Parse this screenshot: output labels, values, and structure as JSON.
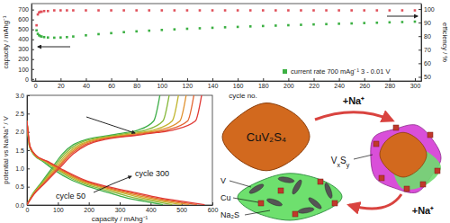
{
  "chart_data": [
    {
      "type": "scatter",
      "xlabel": "cycle no.",
      "ylabel": "capacity / mAhg⁻¹",
      "y2label": "efficiency / %",
      "x": [
        1,
        2,
        3,
        4,
        5,
        7,
        10,
        15,
        20,
        25,
        30,
        40,
        50,
        60,
        70,
        80,
        90,
        100,
        110,
        120,
        130,
        140,
        150,
        160,
        170,
        180,
        190,
        200,
        210,
        220,
        230,
        240,
        250,
        260,
        270,
        280,
        290,
        300
      ],
      "xlim": [
        -3,
        305
      ],
      "xticks": [
        0,
        20,
        40,
        60,
        80,
        100,
        120,
        140,
        160,
        180,
        200,
        220,
        240,
        260,
        280,
        300
      ],
      "ylim": [
        -20,
        760
      ],
      "yticks": [
        0,
        100,
        200,
        300,
        400,
        500,
        600,
        700
      ],
      "y2lim": [
        47,
        104
      ],
      "y2ticks": [
        50,
        60,
        70,
        80,
        90,
        100
      ],
      "legend": "lower right",
      "series": [
        {
          "name": "current rate 700 mAg⁻¹ 3 - 0.01 V",
          "color": "#3cb043",
          "marker": "square",
          "values": [
            490,
            455,
            440,
            432,
            428,
            422,
            418,
            416,
            418,
            422,
            428,
            440,
            452,
            462,
            472,
            480,
            487,
            494,
            500,
            506,
            511,
            516,
            521,
            525,
            530,
            534,
            538,
            542,
            546,
            550,
            553,
            557,
            560,
            564,
            567,
            571,
            574,
            578
          ]
        },
        {
          "color": "#e0505a",
          "marker": "square",
          "axis": "y2",
          "values": [
            88,
            96,
            97.5,
            98,
            98,
            98.5,
            98.5,
            99,
            99,
            99,
            99,
            99,
            99,
            99,
            99,
            99,
            99,
            99,
            99,
            99,
            99,
            99,
            99,
            99,
            99,
            99,
            99,
            99,
            99,
            99,
            99,
            99,
            99,
            99,
            99,
            99,
            99,
            99
          ]
        }
      ]
    },
    {
      "type": "line",
      "xlabel": "capacity / mAhg⁻¹",
      "ylabel": "potential vs Na/Na⁺ / V",
      "xlim": [
        0,
        600
      ],
      "xticks": [
        0,
        100,
        200,
        300,
        400,
        500,
        600
      ],
      "ylim": [
        0,
        3
      ],
      "yticks": [
        {
          "value": 0,
          "label": "0.0"
        },
        {
          "value": 0.5,
          "label": "0.5"
        },
        {
          "value": 1,
          "label": "1.0"
        },
        {
          "value": 1.5,
          "label": "1.5"
        },
        {
          "value": 2,
          "label": "2.0"
        },
        {
          "value": 2.5,
          "label": "2.5"
        },
        {
          "value": 3,
          "label": "3.0"
        }
      ],
      "annotations": [
        "cycle 50",
        "cycle 300"
      ],
      "series": [
        {
          "color": "#3fae49",
          "x": [
            0,
            8,
            25,
            50,
            90,
            140,
            200,
            260,
            320,
            380,
            440
          ],
          "values": [
            2.3,
            1.6,
            1.35,
            1.2,
            0.95,
            0.7,
            0.5,
            0.35,
            0.2,
            0.1,
            0.01
          ]
        },
        {
          "color": "#3fae49",
          "x": [
            0,
            18,
            45,
            80,
            115,
            150,
            195,
            265,
            320,
            360,
            410,
            430
          ],
          "values": [
            0.01,
            0.3,
            0.6,
            1.0,
            1.4,
            1.65,
            1.8,
            1.9,
            1.98,
            2.05,
            2.3,
            3.0
          ]
        },
        {
          "color": "#86b83a",
          "x": [
            0,
            8,
            25,
            55,
            100,
            150,
            215,
            280,
            345,
            410,
            470
          ],
          "values": [
            2.3,
            1.6,
            1.35,
            1.2,
            0.95,
            0.7,
            0.5,
            0.35,
            0.2,
            0.1,
            0.01
          ]
        },
        {
          "color": "#86b83a",
          "x": [
            0,
            19,
            48,
            85,
            122,
            160,
            208,
            283,
            342,
            385,
            440,
            460
          ],
          "values": [
            0.01,
            0.3,
            0.6,
            1.0,
            1.4,
            1.65,
            1.8,
            1.9,
            1.98,
            2.05,
            2.3,
            3.0
          ]
        },
        {
          "color": "#c1b52e",
          "x": [
            0,
            9,
            27,
            58,
            105,
            160,
            230,
            300,
            370,
            435,
            500
          ],
          "values": [
            2.3,
            1.6,
            1.35,
            1.2,
            0.95,
            0.7,
            0.5,
            0.35,
            0.2,
            0.1,
            0.01
          ]
        },
        {
          "color": "#c1b52e",
          "x": [
            0,
            20,
            51,
            90,
            130,
            170,
            222,
            302,
            365,
            410,
            470,
            490
          ],
          "values": [
            0.01,
            0.3,
            0.6,
            1.0,
            1.4,
            1.65,
            1.8,
            1.9,
            1.98,
            2.05,
            2.3,
            3.0
          ]
        },
        {
          "color": "#e0902c",
          "x": [
            0,
            9,
            28,
            60,
            110,
            168,
            240,
            315,
            390,
            460,
            525
          ],
          "values": [
            2.3,
            1.6,
            1.35,
            1.2,
            0.95,
            0.7,
            0.5,
            0.35,
            0.2,
            0.1,
            0.01
          ]
        },
        {
          "color": "#e0902c",
          "x": [
            0,
            21,
            53,
            95,
            137,
            178,
            233,
            317,
            383,
            431,
            495,
            515
          ],
          "values": [
            0.01,
            0.3,
            0.6,
            1.0,
            1.4,
            1.65,
            1.8,
            1.9,
            1.98,
            2.05,
            2.3,
            3.0
          ]
        },
        {
          "color": "#e3632e",
          "x": [
            0,
            10,
            30,
            63,
            115,
            175,
            250,
            330,
            410,
            480,
            550
          ],
          "values": [
            2.3,
            1.6,
            1.35,
            1.2,
            0.95,
            0.7,
            0.5,
            0.35,
            0.2,
            0.1,
            0.01
          ]
        },
        {
          "color": "#e3632e",
          "x": [
            0,
            22,
            56,
            99,
            143,
            187,
            244,
            333,
            402,
            452,
            520,
            540
          ],
          "values": [
            0.01,
            0.3,
            0.6,
            1.0,
            1.4,
            1.65,
            1.8,
            1.9,
            1.98,
            2.05,
            2.3,
            3.0
          ]
        },
        {
          "color": "#e03a36",
          "x": [
            0,
            10,
            30,
            65,
            120,
            182,
            262,
            345,
            428,
            502,
            575
          ],
          "values": [
            2.3,
            1.6,
            1.35,
            1.2,
            0.95,
            0.7,
            0.5,
            0.35,
            0.2,
            0.1,
            0.01
          ]
        },
        {
          "color": "#e03a36",
          "x": [
            0,
            23,
            58,
            104,
            150,
            196,
            256,
            348,
            420,
            473,
            545,
            565
          ],
          "values": [
            0.01,
            0.3,
            0.6,
            1.0,
            1.4,
            1.65,
            1.8,
            1.9,
            1.98,
            2.05,
            2.3,
            3.0
          ]
        }
      ]
    }
  ],
  "diagram": {
    "start": "CuV₂S₄",
    "arrows": [
      "+Na⁺",
      "+Na⁺"
    ],
    "intermediate": [
      "V",
      "x",
      "S",
      "y"
    ],
    "products": [
      "V",
      "Cu",
      "Na₂S"
    ]
  }
}
